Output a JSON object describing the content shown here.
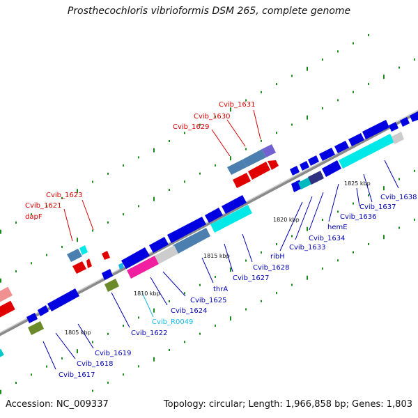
{
  "title": "Prosthecochloris vibrioformis DSM 265, complete genome",
  "footer": {
    "accession": "Accession: NC_009337",
    "summary": "Topology: circular; Length: 1,966,858 bp; Genes: 1,803"
  },
  "colors": {
    "red_label": "#d40000",
    "blue_label": "#0000b0",
    "cyan_label": "#18b8e8",
    "backbone": "#8a8a8a",
    "tick": "#1a8a1a"
  },
  "scale_labels": [
    "1805 kbp",
    "1810 kbp",
    "1815 kbp",
    "1820 kbp",
    "1825 kbp"
  ],
  "genes_above": [
    "dapF",
    "Cvib_1621",
    "Cvib_1623",
    "Cvib_1629",
    "Cvib_1630",
    "Cvib_1631"
  ],
  "genes_below": [
    "Cvib_1617",
    "Cvib_1618",
    "Cvib_1619",
    "Cvib_1622",
    "Cvib_R0049",
    "Cvib_1624",
    "Cvib_1625",
    "thrA",
    "Cvib_1627",
    "Cvib_1628",
    "ribH",
    "Cvib_1633",
    "Cvib_1634",
    "hemE",
    "Cvib_1636",
    "Cvib_1637",
    "Cvib_1638"
  ]
}
